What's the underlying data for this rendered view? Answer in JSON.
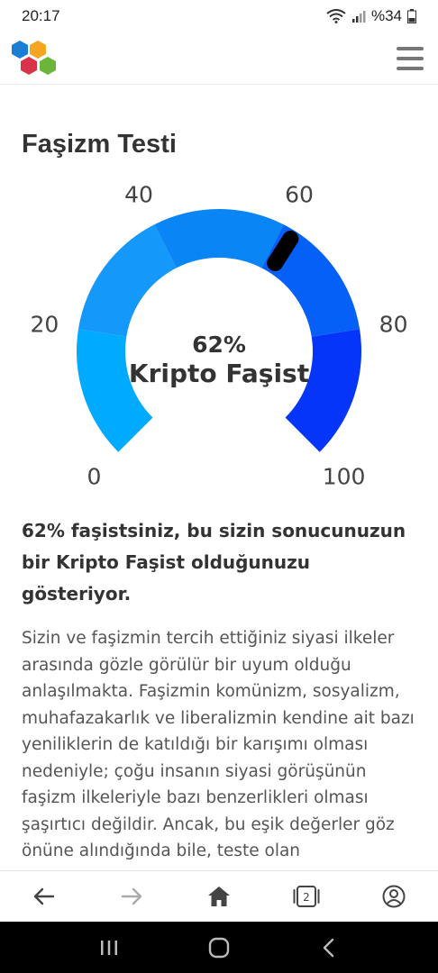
{
  "status_bar": {
    "time": "20:17",
    "battery": "%34"
  },
  "header": {
    "logo_icon": "hexagon-cluster-logo",
    "menu_icon": "hamburger-icon"
  },
  "page": {
    "title": "Faşizm Testi"
  },
  "gauge": {
    "value": 62,
    "percent_label": "62%",
    "result_label": "Kripto Faşist",
    "ticks": [
      "0",
      "20",
      "40",
      "60",
      "80",
      "100"
    ],
    "segment_colors": [
      "#00aaff",
      "#1499fb",
      "#0a85f5",
      "#0560f7",
      "#0535f8"
    ],
    "needle_color": "#000000"
  },
  "result": {
    "heading": "62% faşistsiniz, bu sizin sonucunuzun bir Kripto Faşist olduğunuzu gösteriyor.",
    "body": "Sizin ve faşizmin tercih ettiğiniz siyasi ilkeler arasında gözle görülür bir uyum olduğu anlaşılmakta. Faşizmin komünizm, sosyalizm, muhafazakarlık ve liberalizmin kendine ait bazı yeniliklerin de katıldığı bir karışımı olması nedeniyle; çoğu insanın siyasi görüşünün faşizm ilkeleriyle bazı benzerlikleri olması şaşırtıcı değildir. Ancak, bu eşik değerler göz önüne alındığında bile, teste olan"
  },
  "bottom_nav": {
    "tab_count": "2",
    "icons": [
      "arrow-left-icon",
      "arrow-right-icon",
      "home-icon",
      "tabs-icon",
      "account-icon"
    ]
  }
}
